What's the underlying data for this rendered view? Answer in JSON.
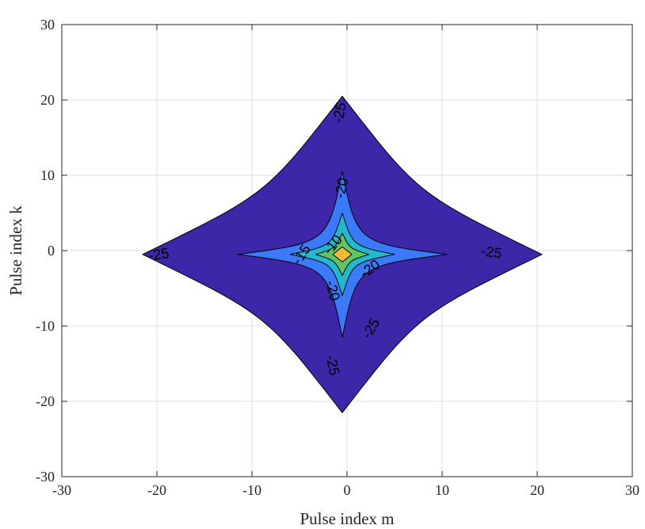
{
  "chart_data": {
    "type": "contour",
    "title": "",
    "xlabel": "Pulse index m",
    "ylabel": "Pulse index k",
    "xlim": [
      -30,
      30
    ],
    "ylim": [
      -30,
      30
    ],
    "xticks": [
      -30,
      -20,
      -10,
      0,
      10,
      20,
      30
    ],
    "yticks": [
      -30,
      -20,
      -10,
      0,
      10,
      20,
      30
    ],
    "xtick_labels": [
      "-30",
      "-20",
      "-10",
      "0",
      "10",
      "20",
      "30"
    ],
    "ytick_labels": [
      "-30",
      "-20",
      "-10",
      "0",
      "10",
      "20",
      "30"
    ],
    "grid": true,
    "center": [
      -0.5,
      -0.5
    ],
    "levels": [
      {
        "level": -25,
        "color": "#3e26a8",
        "extent": {
          "left": 21,
          "right": 21,
          "up": 21,
          "down": 21
        },
        "shoulder": 0.38,
        "power": 1.9
      },
      {
        "level": -20,
        "color": "#3b7afb",
        "extent": {
          "left": 11,
          "right": 11,
          "up": 11,
          "down": 11
        },
        "shoulder": 0.14,
        "power": 2.2
      },
      {
        "level": -15,
        "color": "#24b7ce",
        "extent": {
          "left": 5.5,
          "right": 5.5,
          "up": 5.5,
          "down": 5.5
        },
        "shoulder": 0.2,
        "power": 2.0
      },
      {
        "level": -10,
        "color": "#5dc764",
        "extent": {
          "left": 2.8,
          "right": 2.8,
          "up": 2.8,
          "down": 2.8
        },
        "shoulder": 0.28,
        "power": 1.8
      },
      {
        "level": -5,
        "color": "#f2b93a",
        "extent": {
          "left": 1.0,
          "right": 1.0,
          "up": 1.0,
          "down": 1.0
        },
        "shoulder": 1.0,
        "power": 1.0
      }
    ],
    "contour_labels": [
      {
        "text": "-25",
        "x": -19.8,
        "y": -0.5,
        "angle": -8
      },
      {
        "text": "-25",
        "x": -0.8,
        "y": 18.3,
        "angle": -80
      },
      {
        "text": "-25",
        "x": 15.2,
        "y": -0.2,
        "angle": 8
      },
      {
        "text": "-25",
        "x": 2.5,
        "y": -10.3,
        "angle": -58
      },
      {
        "text": "-25",
        "x": -1.5,
        "y": -15.2,
        "angle": 78
      },
      {
        "text": "-20",
        "x": -0.6,
        "y": 8.3,
        "angle": -78
      },
      {
        "text": "-20",
        "x": 2.4,
        "y": -2.4,
        "angle": -35
      },
      {
        "text": "-20",
        "x": -1.5,
        "y": -5.3,
        "angle": 75
      },
      {
        "text": "-15",
        "x": -4.8,
        "y": -0.5,
        "angle": -55
      },
      {
        "text": "-10",
        "x": -1.5,
        "y": 0.8,
        "angle": -50
      }
    ]
  }
}
